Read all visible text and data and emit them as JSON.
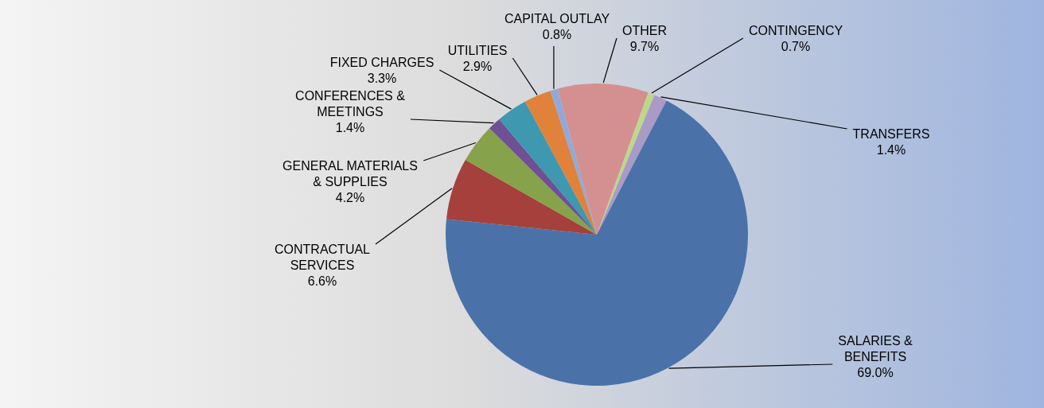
{
  "chart_data": {
    "type": "pie",
    "categories": [
      "OTHER",
      "CONTINGENCY",
      "TRANSFERS",
      "SALARIES & BENEFITS",
      "CONTRACTUAL SERVICES",
      "GENERAL MATERIALS & SUPPLIES",
      "CONFERENCES & MEETINGS",
      "FIXED CHARGES",
      "UTILITIES",
      "CAPITAL OUTLAY"
    ],
    "values": [
      9.7,
      0.7,
      1.4,
      69.0,
      6.6,
      4.2,
      1.4,
      3.3,
      2.9,
      0.8
    ],
    "value_labels": [
      "9.7%",
      "0.7%",
      "1.4%",
      "69.0%",
      "6.6%",
      "4.2%",
      "1.4%",
      "3.3%",
      "2.9%",
      "0.8%"
    ],
    "colors": [
      "#d49090",
      "#bcd88a",
      "#a99bc5",
      "#4a72a8",
      "#a5403c",
      "#86a24a",
      "#6f5094",
      "#3e98b0",
      "#e0823a",
      "#92a9d8"
    ]
  }
}
